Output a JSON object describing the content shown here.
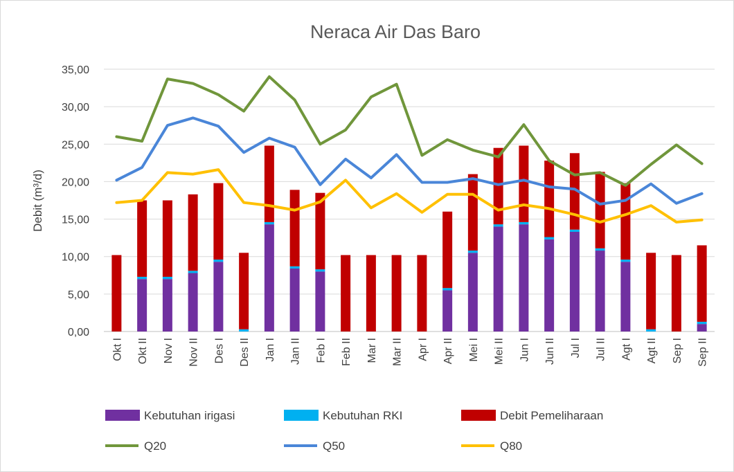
{
  "chart_data": {
    "type": "bar",
    "title": "Neraca Air Das Baro",
    "xlabel": "",
    "ylabel": "Debit (m³/d)",
    "ylim": [
      0,
      35
    ],
    "yticks": [
      "0,00",
      "5,00",
      "10,00",
      "15,00",
      "20,00",
      "25,00",
      "30,00",
      "35,00"
    ],
    "grid": true,
    "legend_position": "bottom",
    "categories": [
      "Okt I",
      "Okt II",
      "Nov I",
      "Nov II",
      "Des I",
      "Des II",
      "Jan I",
      "Jan II",
      "Feb I",
      "Feb II",
      "Mar I",
      "Mar II",
      "Apr I",
      "Apr II",
      "Mei I",
      "Mei II",
      "Jun I",
      "Jun II",
      "Jul I",
      "Jul II",
      "Agt I",
      "Agt II",
      "Sep I",
      "Sep II"
    ],
    "series": [
      {
        "name": "Kebutuhan irigasi",
        "kind": "stacked-bar",
        "color": "#7030a0",
        "values": [
          0,
          7.0,
          7.0,
          7.8,
          9.3,
          0,
          14.3,
          8.4,
          8.0,
          0,
          0,
          0,
          0,
          5.5,
          10.5,
          14.0,
          14.3,
          12.3,
          13.3,
          10.8,
          9.3,
          0,
          0,
          1.0
        ]
      },
      {
        "name": "Kebutuhan RKI",
        "kind": "stacked-bar",
        "color": "#00b0f0",
        "values": [
          0,
          0.3,
          0.3,
          0.3,
          0.3,
          0.3,
          0.3,
          0.3,
          0.3,
          0,
          0,
          0,
          0,
          0.3,
          0.3,
          0.3,
          0.3,
          0.3,
          0.3,
          0.3,
          0.3,
          0.3,
          0,
          0.3
        ]
      },
      {
        "name": "Debit Pemeliharaan",
        "kind": "stacked-bar",
        "color": "#c00000",
        "values": [
          10.2,
          10.2,
          10.2,
          10.2,
          10.2,
          10.2,
          10.2,
          10.2,
          10.2,
          10.2,
          10.2,
          10.2,
          10.2,
          10.2,
          10.2,
          10.2,
          10.2,
          10.2,
          10.2,
          10.2,
          10.2,
          10.2,
          10.2,
          10.2
        ]
      },
      {
        "name": "Q20",
        "kind": "line",
        "color": "#70963b",
        "values": [
          26.0,
          25.4,
          33.7,
          33.1,
          31.6,
          29.4,
          34.0,
          30.9,
          25.0,
          26.9,
          31.3,
          33.0,
          23.5,
          25.6,
          24.2,
          23.3,
          27.6,
          22.8,
          20.9,
          21.2,
          19.5,
          22.3,
          24.9,
          22.4
        ]
      },
      {
        "name": "Q50",
        "kind": "line",
        "color": "#4a86d8",
        "values": [
          20.2,
          21.9,
          27.5,
          28.5,
          27.4,
          23.9,
          25.8,
          24.6,
          19.6,
          23.0,
          20.5,
          23.6,
          19.9,
          19.9,
          20.4,
          19.6,
          20.2,
          19.3,
          19.0,
          17.0,
          17.5,
          19.7,
          17.1,
          18.4
        ]
      },
      {
        "name": "Q80",
        "kind": "line",
        "color": "#ffc000",
        "values": [
          17.2,
          17.5,
          21.2,
          21.0,
          21.6,
          17.2,
          16.8,
          16.2,
          17.3,
          20.2,
          16.5,
          18.4,
          15.9,
          18.3,
          18.3,
          16.2,
          16.9,
          16.4,
          15.6,
          14.6,
          15.6,
          16.8,
          14.6,
          14.9
        ]
      }
    ]
  }
}
